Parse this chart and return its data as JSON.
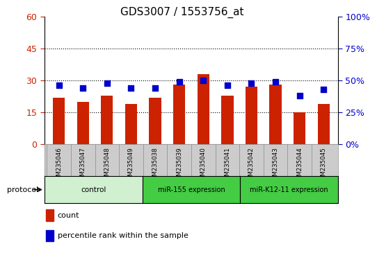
{
  "title": "GDS3007 / 1553756_at",
  "samples": [
    "GSM235046",
    "GSM235047",
    "GSM235048",
    "GSM235049",
    "GSM235038",
    "GSM235039",
    "GSM235040",
    "GSM235041",
    "GSM235042",
    "GSM235043",
    "GSM235044",
    "GSM235045"
  ],
  "counts": [
    22,
    20,
    23,
    19,
    22,
    28,
    33,
    23,
    27,
    28,
    15,
    19
  ],
  "percentile_ranks": [
    46,
    44,
    48,
    44,
    44,
    49,
    50,
    46,
    48,
    49,
    38,
    43
  ],
  "groups": [
    {
      "label": "control",
      "start": 0,
      "end": 4,
      "color": "#d0f0d0"
    },
    {
      "label": "miR-155 expression",
      "start": 4,
      "end": 8,
      "color": "#44cc44"
    },
    {
      "label": "miR-K12-11 expression",
      "start": 8,
      "end": 12,
      "color": "#44cc44"
    }
  ],
  "left_ylim": [
    0,
    60
  ],
  "left_yticks": [
    0,
    15,
    30,
    45,
    60
  ],
  "left_ytick_labels": [
    "0",
    "15",
    "30",
    "45",
    "60"
  ],
  "right_ylim": [
    0,
    100
  ],
  "right_yticks": [
    0,
    25,
    50,
    75,
    100
  ],
  "right_ytick_labels": [
    "0%",
    "25%",
    "50%",
    "75%",
    "100%"
  ],
  "bar_color": "#cc2200",
  "dot_color": "#0000cc",
  "bar_width": 0.5,
  "dot_size": 28,
  "legend_count_label": "count",
  "legend_pct_label": "percentile rank within the sample",
  "protocol_label": "protocol",
  "bg_color": "#ffffff",
  "tick_label_color_left": "#cc2200",
  "tick_label_color_right": "#0000cc",
  "sample_box_color": "#cccccc",
  "grid_color": "#000000"
}
